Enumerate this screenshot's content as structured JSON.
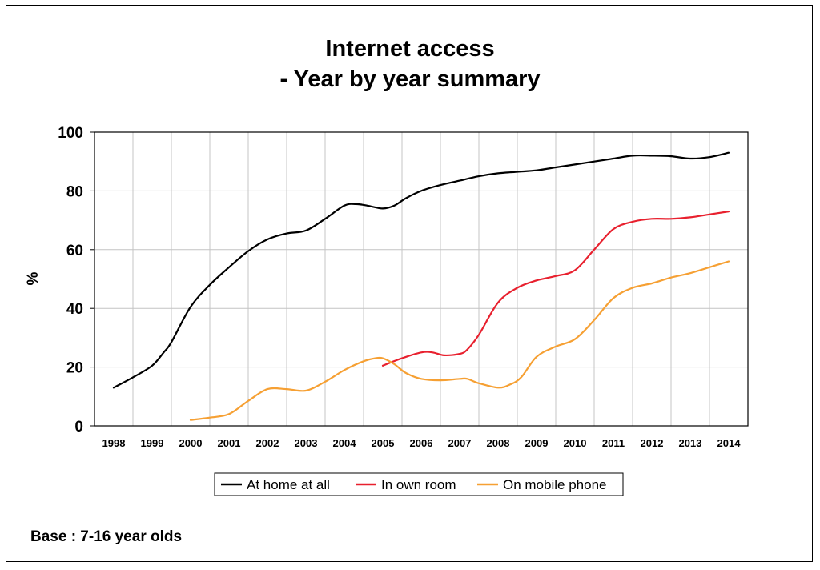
{
  "chart_data": {
    "type": "line",
    "title": [
      "Internet access",
      "- Year by year summary"
    ],
    "ylabel": "%",
    "ylim": [
      0,
      100
    ],
    "yticks": [
      0,
      20,
      40,
      60,
      80,
      100
    ],
    "x": [
      1998,
      1999,
      2000,
      2001,
      2002,
      2003,
      2004,
      2005,
      2006,
      2007,
      2008,
      2009,
      2010,
      2011,
      2012,
      2013,
      2014
    ],
    "grid": "vertical and horizontal",
    "legend_position": "bottom",
    "series": [
      {
        "name": "At home at all",
        "color": "#000000",
        "points": [
          [
            1998,
            13
          ],
          [
            1998.5,
            16.5
          ],
          [
            1999,
            20.5
          ],
          [
            1999.3,
            25
          ],
          [
            1999.5,
            28.5
          ],
          [
            2000,
            40.5
          ],
          [
            2000.5,
            48
          ],
          [
            2001,
            54
          ],
          [
            2001.5,
            59.5
          ],
          [
            2002,
            63.5
          ],
          [
            2002.5,
            65.5
          ],
          [
            2003,
            66.5
          ],
          [
            2003.5,
            70.5
          ],
          [
            2004,
            75
          ],
          [
            2004.3,
            75.5
          ],
          [
            2004.6,
            75
          ],
          [
            2005,
            74
          ],
          [
            2005.3,
            75
          ],
          [
            2005.6,
            77.5
          ],
          [
            2006,
            80
          ],
          [
            2006.5,
            82
          ],
          [
            2007,
            83.5
          ],
          [
            2007.5,
            85
          ],
          [
            2008,
            86
          ],
          [
            2008.5,
            86.5
          ],
          [
            2009,
            87
          ],
          [
            2009.5,
            88
          ],
          [
            2010,
            89
          ],
          [
            2010.5,
            90
          ],
          [
            2011,
            91
          ],
          [
            2011.5,
            92
          ],
          [
            2012,
            92
          ],
          [
            2012.5,
            91.8
          ],
          [
            2013,
            91
          ],
          [
            2013.5,
            91.5
          ],
          [
            2014,
            93
          ]
        ]
      },
      {
        "name": "In own room",
        "color": "#e8202e",
        "points": [
          [
            2005,
            20.5
          ],
          [
            2005.5,
            23
          ],
          [
            2006,
            25
          ],
          [
            2006.3,
            25
          ],
          [
            2006.6,
            24
          ],
          [
            2007,
            24.5
          ],
          [
            2007.2,
            26
          ],
          [
            2007.5,
            31
          ],
          [
            2008,
            42
          ],
          [
            2008.5,
            47
          ],
          [
            2009,
            49.5
          ],
          [
            2009.5,
            51
          ],
          [
            2010,
            53
          ],
          [
            2010.5,
            60
          ],
          [
            2011,
            67
          ],
          [
            2011.5,
            69.5
          ],
          [
            2012,
            70.5
          ],
          [
            2012.5,
            70.5
          ],
          [
            2013,
            71
          ],
          [
            2013.5,
            72
          ],
          [
            2014,
            73
          ]
        ]
      },
      {
        "name": "On mobile phone",
        "color": "#f6a033",
        "points": [
          [
            2000,
            2
          ],
          [
            2000.5,
            2.8
          ],
          [
            2001,
            4
          ],
          [
            2001.5,
            8.5
          ],
          [
            2002,
            12.5
          ],
          [
            2002.5,
            12.5
          ],
          [
            2003,
            12
          ],
          [
            2003.5,
            15
          ],
          [
            2004,
            19
          ],
          [
            2004.5,
            22
          ],
          [
            2004.8,
            23
          ],
          [
            2005,
            23
          ],
          [
            2005.3,
            21
          ],
          [
            2005.6,
            18
          ],
          [
            2006,
            16
          ],
          [
            2006.5,
            15.5
          ],
          [
            2007,
            16
          ],
          [
            2007.2,
            16
          ],
          [
            2007.5,
            14.5
          ],
          [
            2008,
            13
          ],
          [
            2008.3,
            14
          ],
          [
            2008.6,
            16.5
          ],
          [
            2009,
            23.5
          ],
          [
            2009.5,
            27
          ],
          [
            2010,
            29.5
          ],
          [
            2010.5,
            36
          ],
          [
            2011,
            43.5
          ],
          [
            2011.5,
            47
          ],
          [
            2012,
            48.5
          ],
          [
            2012.5,
            50.5
          ],
          [
            2013,
            52
          ],
          [
            2013.5,
            54
          ],
          [
            2014,
            56
          ]
        ]
      }
    ],
    "footnote": "Base : 7-16 year olds"
  }
}
